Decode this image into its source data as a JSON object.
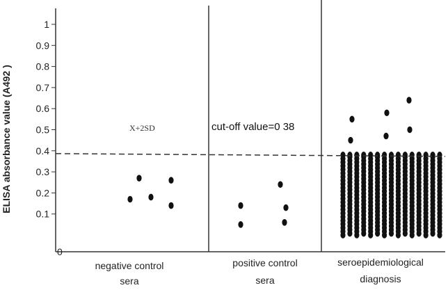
{
  "chart_data": {
    "type": "scatter",
    "title": "",
    "ylabel": "ELISA absorbance value (A492 )",
    "xlabel": "",
    "ylim": [
      0,
      1.05
    ],
    "y_ticks": [
      {
        "value": 1,
        "label": "1"
      },
      {
        "value": 0.9,
        "label": "0.9"
      },
      {
        "value": 0.8,
        "label": "0.8"
      },
      {
        "value": 0.7,
        "label": "0.7"
      },
      {
        "value": 0.6,
        "label": "0.6"
      },
      {
        "value": 0.5,
        "label": "0.5"
      },
      {
        "value": 0.4,
        "label": "0.4"
      },
      {
        "value": 0.3,
        "label": "0.3"
      },
      {
        "value": 0.2,
        "label": "0.2"
      },
      {
        "value": 0.1,
        "label": "0.1"
      }
    ],
    "origin_label": "0",
    "groups": [
      {
        "label_lines": [
          "negative control",
          "sera"
        ],
        "values": [
          0.17,
          0.27,
          0.18,
          0.26,
          0.14
        ]
      },
      {
        "label_lines": [
          "positive control",
          "sera"
        ],
        "values": [
          0.14,
          0.05,
          0.24,
          0.13,
          0.06
        ]
      },
      {
        "label_lines": [
          "seroepidemiological",
          "diagnosis"
        ],
        "values_above_cutoff": [
          0.55,
          0.45,
          0.58,
          0.47,
          0.64,
          0.5
        ],
        "values_below_cutoff_min": 0.0,
        "values_below_cutoff_max": 0.38,
        "columns_below_cutoff": 15,
        "rows_below_cutoff": 23
      }
    ],
    "cutoff": {
      "value": 0.38,
      "label": "cut-off value=0 38"
    },
    "annotation_mean": "X+2SD",
    "grid": false,
    "legend": "none"
  }
}
